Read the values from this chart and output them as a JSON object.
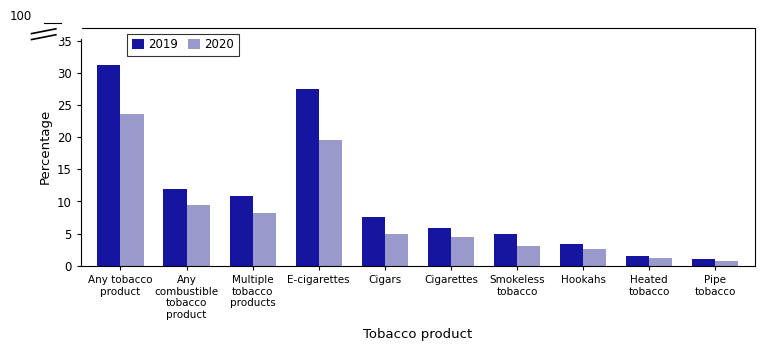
{
  "categories": [
    "Any tobacco\nproduct",
    "Any\ncombustible\ntobacco\nproduct",
    "Multiple\ntobacco\nproducts",
    "E-cigarettes",
    "Cigars",
    "Cigarettes",
    "Smokeless\ntobacco",
    "Hookahs",
    "Heated\ntobacco",
    "Pipe\ntobacco"
  ],
  "values_2019": [
    31.2,
    12.0,
    10.9,
    27.5,
    7.6,
    5.8,
    4.9,
    3.4,
    1.6,
    1.0
  ],
  "values_2020": [
    23.6,
    9.4,
    8.2,
    19.6,
    5.0,
    4.5,
    3.1,
    2.6,
    1.2,
    0.7
  ],
  "color_2019": "#1515a0",
  "color_2020": "#9999cc",
  "xlabel": "Tobacco product",
  "ylabel": "Percentage",
  "yticks_main": [
    0,
    5,
    10,
    15,
    20,
    25,
    30,
    35
  ],
  "ytick_top": 100,
  "bar_width": 0.35,
  "legend_labels": [
    "2019",
    "2020"
  ],
  "background_color": "#ffffff"
}
